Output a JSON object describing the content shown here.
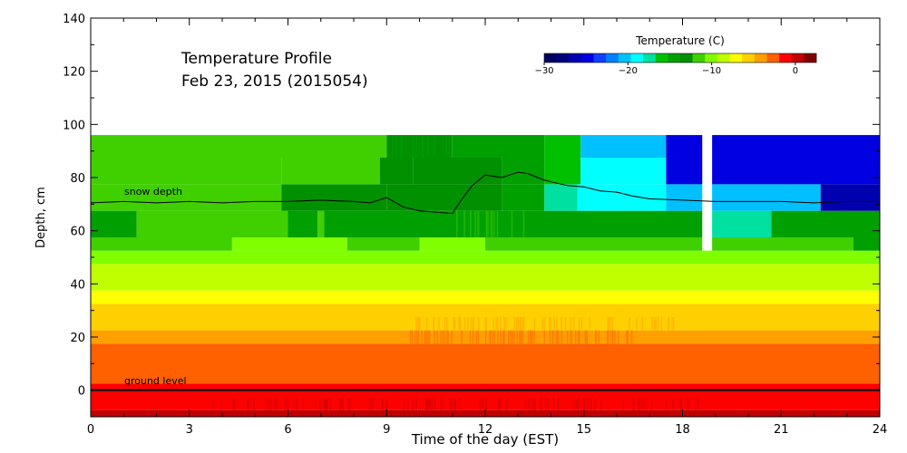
{
  "chart_data": {
    "type": "heatmap",
    "title": "Temperature Profile",
    "subtitle": "Feb 23, 2015 (2015054)",
    "xlabel": "Time of the day (EST)",
    "ylabel": "Depth, cm",
    "xlim": [
      0,
      24
    ],
    "ylim": [
      -10,
      140
    ],
    "x_ticks": [
      0,
      3,
      6,
      9,
      12,
      15,
      18,
      21,
      24
    ],
    "y_ticks": [
      0,
      20,
      40,
      60,
      80,
      100,
      120,
      140
    ],
    "colorbar": {
      "title": "Temperature (C)",
      "range": [
        -30,
        2.5
      ],
      "ticks": [
        -30,
        -20,
        -10,
        0
      ],
      "tick_labels": [
        "−30",
        "−20",
        "−10",
        "0"
      ],
      "colors": [
        "#000060",
        "#00007f",
        "#0000b0",
        "#0000e0",
        "#1040ff",
        "#0080ff",
        "#00c0ff",
        "#00ffff",
        "#00e0a0",
        "#00c000",
        "#00a000",
        "#009000",
        "#40d000",
        "#80ff00",
        "#c0ff00",
        "#ffff00",
        "#ffd000",
        "#ffa000",
        "#ff6000",
        "#ff0000",
        "#c00000",
        "#800000"
      ]
    },
    "gap": [
      18.6,
      18.9
    ],
    "bands": [
      {
        "y": [
          -10,
          -7.5
        ],
        "segments": [
          {
            "x": [
              0,
              24
            ],
            "t": -0.3
          }
        ]
      },
      {
        "y": [
          -7.5,
          2.5
        ],
        "segments": [
          {
            "x": [
              0,
              24
            ],
            "t": -0.8
          }
        ]
      },
      {
        "y": [
          2.5,
          12.5
        ],
        "segments": [
          {
            "x": [
              0,
              24
            ],
            "t": -2.0
          }
        ]
      },
      {
        "y": [
          12.5,
          17.5
        ],
        "segments": [
          {
            "x": [
              0,
              24
            ],
            "t": -2.8
          }
        ]
      },
      {
        "y": [
          17.5,
          22.5
        ],
        "segments": [
          {
            "x": [
              0,
              24
            ],
            "t": -3.5
          }
        ]
      },
      {
        "y": [
          22.5,
          27.5
        ],
        "segments": [
          {
            "x": [
              0,
              24
            ],
            "t": -5.5
          }
        ]
      },
      {
        "y": [
          27.5,
          32.5
        ],
        "segments": [
          {
            "x": [
              0,
              24
            ],
            "t": -6.2
          }
        ]
      },
      {
        "y": [
          32.5,
          37.5
        ],
        "segments": [
          {
            "x": [
              0,
              24
            ],
            "t": -7.0
          }
        ]
      },
      {
        "y": [
          37.5,
          42.5
        ],
        "segments": [
          {
            "x": [
              0,
              24
            ],
            "t": -8.2
          }
        ]
      },
      {
        "y": [
          42.5,
          47.5
        ],
        "segments": [
          {
            "x": [
              0,
              24
            ],
            "t": -9.0
          }
        ]
      },
      {
        "y": [
          47.5,
          52.5
        ],
        "segments": [
          {
            "x": [
              0,
              24
            ],
            "t": -10.0
          }
        ]
      },
      {
        "y": [
          52.5,
          57.5
        ],
        "segments": [
          {
            "x": [
              0,
              4.3
            ],
            "t": -11.0
          },
          {
            "x": [
              4.3,
              7.8
            ],
            "t": -10.0
          },
          {
            "x": [
              7.8,
              10
            ],
            "t": -11.5
          },
          {
            "x": [
              10,
              12
            ],
            "t": -10.5
          },
          {
            "x": [
              12,
              18.6
            ],
            "t": -11.5
          },
          {
            "x": [
              18.9,
              23.2
            ],
            "t": -11.5
          },
          {
            "x": [
              23.2,
              24
            ],
            "t": -14.0
          }
        ]
      },
      {
        "y": [
          57.5,
          67.5
        ],
        "segments": [
          {
            "x": [
              0,
              1.4
            ],
            "t": -14.0
          },
          {
            "x": [
              1.4,
              6
            ],
            "t": -11.5
          },
          {
            "x": [
              6,
              6.9
            ],
            "t": -14.0
          },
          {
            "x": [
              6.9,
              7.1
            ],
            "t": -11.5
          },
          {
            "x": [
              7.1,
              18.6
            ],
            "t": -14.0
          },
          {
            "x": [
              18.9,
              20.7
            ],
            "t": -17.0
          },
          {
            "x": [
              20.7,
              24
            ],
            "t": -14.0
          }
        ]
      },
      {
        "y": [
          67.5,
          77.5
        ],
        "segments": [
          {
            "x": [
              0,
              5.8
            ],
            "t": -11.5
          },
          {
            "x": [
              5.8,
              9
            ],
            "t": -13.0
          },
          {
            "x": [
              9,
              12.5
            ],
            "t": -12.5
          },
          {
            "x": [
              12.5,
              13.8
            ],
            "t": -14.0
          },
          {
            "x": [
              13.8,
              14.8
            ],
            "t": -17.0
          },
          {
            "x": [
              14.8,
              17.5
            ],
            "t": -18.5
          },
          {
            "x": [
              17.5,
              18.6
            ],
            "t": -21.0
          },
          {
            "x": [
              18.9,
              22.2
            ],
            "t": -21.0
          },
          {
            "x": [
              22.2,
              24
            ],
            "t": -26.5
          }
        ]
      },
      {
        "y": [
          77.5,
          87.5
        ],
        "segments": [
          {
            "x": [
              0,
              5.8
            ],
            "t": -11.5
          },
          {
            "x": [
              5.8,
              8.8
            ],
            "t": -12.0
          },
          {
            "x": [
              8.8,
              9.8
            ],
            "t": -12.8
          },
          {
            "x": [
              9.8,
              12.5
            ],
            "t": -13.5
          },
          {
            "x": [
              12.5,
              13.8
            ],
            "t": -14.0
          },
          {
            "x": [
              13.8,
              14.9
            ],
            "t": -16.5
          },
          {
            "x": [
              14.9,
              17.5
            ],
            "t": -19.5
          },
          {
            "x": [
              17.5,
              18.6
            ],
            "t": -24.5
          },
          {
            "x": [
              18.9,
              24
            ],
            "t": -24.5
          }
        ]
      },
      {
        "y": [
          87.5,
          96
        ],
        "segments": [
          {
            "x": [
              0,
              9
            ],
            "t": -11.5
          },
          {
            "x": [
              9,
              11
            ],
            "t": -12.3
          },
          {
            "x": [
              11,
              13.8
            ],
            "t": -14.0
          },
          {
            "x": [
              13.8,
              14.9
            ],
            "t": -16.5
          },
          {
            "x": [
              14.9,
              17.5
            ],
            "t": -21.0
          },
          {
            "x": [
              17.5,
              18.6
            ],
            "t": -24.5
          },
          {
            "x": [
              18.9,
              24
            ],
            "t": -24.5
          }
        ]
      }
    ],
    "snow_depth": {
      "label": "snow depth",
      "x": [
        0,
        1,
        2,
        3,
        4,
        5,
        6,
        7,
        8,
        8.5,
        9,
        9.5,
        10,
        10.5,
        11,
        11.3,
        11.6,
        12,
        12.5,
        13,
        13.3,
        13.8,
        14.5,
        15,
        15.5,
        16,
        16.5,
        17,
        18,
        19,
        20,
        21,
        22,
        23,
        24
      ],
      "y": [
        70.5,
        71,
        70.5,
        71,
        70.5,
        71,
        71,
        71.5,
        71,
        70.5,
        72.5,
        69,
        67.5,
        67,
        66.5,
        72,
        77,
        81,
        80,
        82,
        81.5,
        79,
        77,
        76.5,
        75,
        74.5,
        73,
        72,
        71.5,
        71,
        71,
        71,
        70.5,
        71,
        71
      ]
    },
    "ground_level": {
      "label": "ground level",
      "y": 0
    }
  }
}
